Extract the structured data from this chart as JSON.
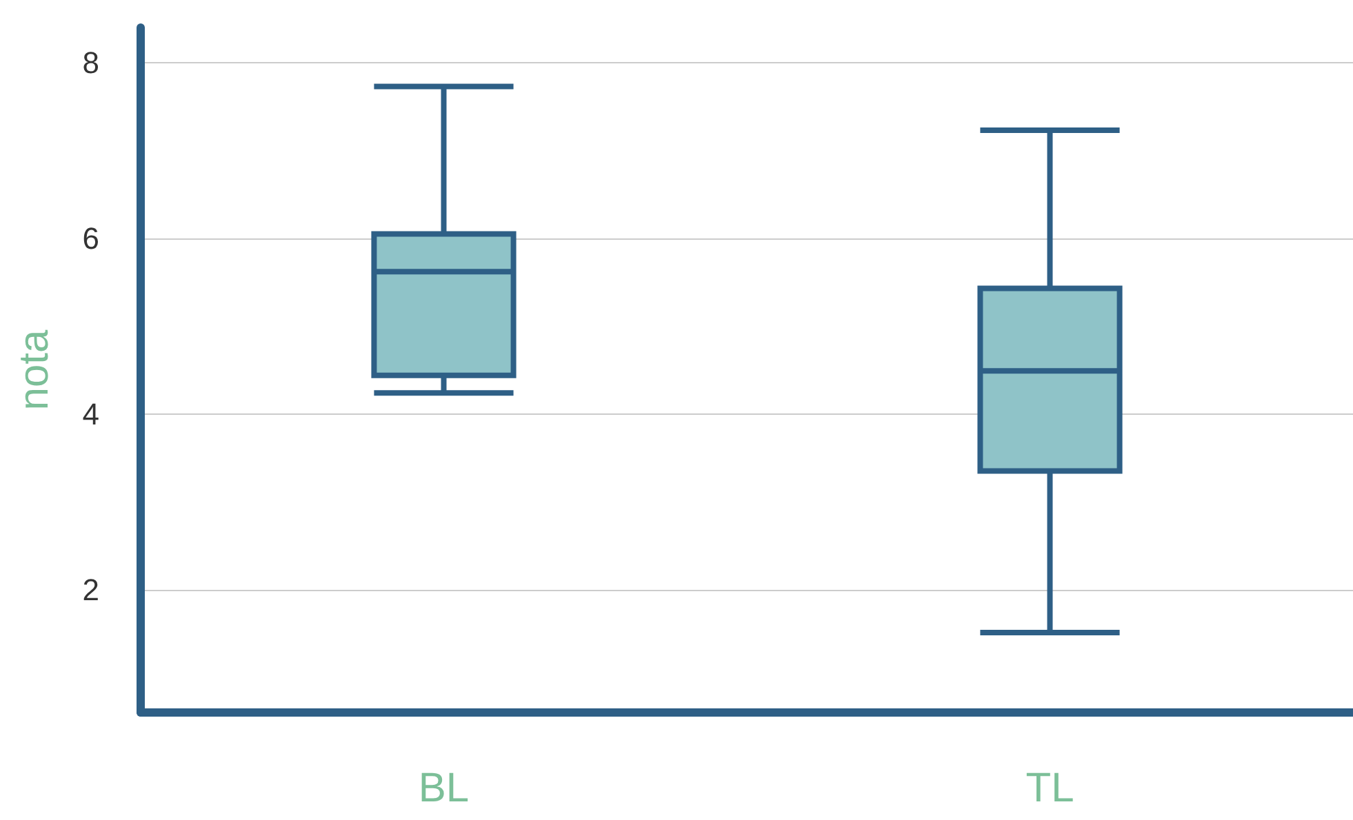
{
  "chart_data": {
    "type": "box",
    "ylabel": "nota",
    "categories": [
      "BL",
      "TL"
    ],
    "series": [
      {
        "color": "#8fc3c8",
        "boxes": [
          {
            "low": 4.24,
            "q1": 4.44,
            "median": 5.62,
            "q3": 6.05,
            "high": 7.73
          },
          {
            "low": 1.51,
            "q1": 3.35,
            "median": 4.49,
            "q3": 5.43,
            "high": 7.23
          }
        ]
      }
    ],
    "ylim": [
      0.6,
      8.4
    ],
    "yticks": [
      2,
      4,
      6,
      8
    ],
    "grid": "y"
  }
}
